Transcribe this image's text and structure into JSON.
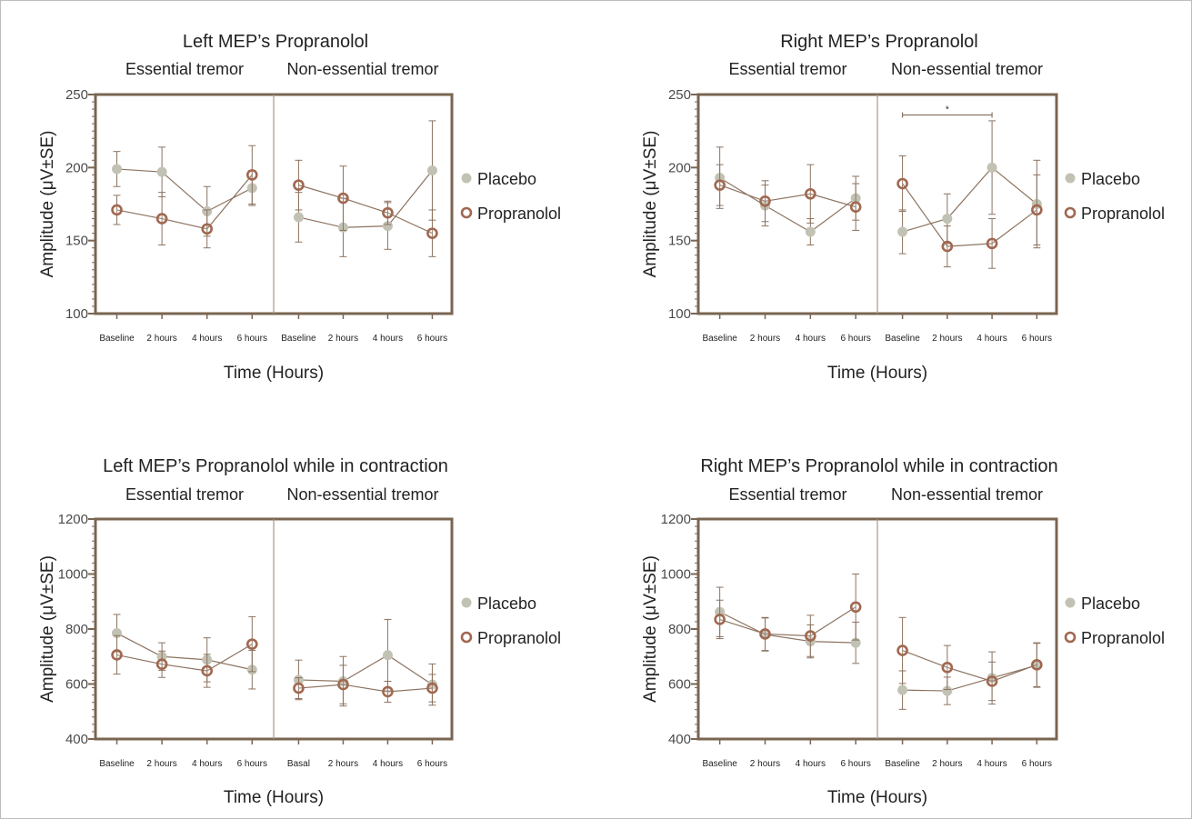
{
  "colors": {
    "axis": "#7a6552",
    "placebo": "#c2c2b4",
    "propranolol": "#a06850",
    "line": "#8c7360",
    "divider": "#a89888"
  },
  "chart_data": [
    {
      "type": "line",
      "title": "Left MEP’s Propranolol",
      "group_labels": [
        "Essential tremor",
        "Non-essential tremor"
      ],
      "xlabel": "Time (Hours)",
      "ylabel": "Amplitude (μV±SE)",
      "ylim": [
        100,
        250
      ],
      "yticks": [
        100,
        150,
        200,
        250
      ],
      "categories": [
        "Baseline",
        "2 hours",
        "4 hours",
        "6 hours",
        "Baseline",
        "2 hours",
        "4 hours",
        "6 hours"
      ],
      "legend_position": "right",
      "series": [
        {
          "name": "Placebo",
          "marker": "filled-circle",
          "values": [
            199,
            197,
            170,
            186,
            166,
            159,
            160,
            198
          ],
          "errors": [
            12,
            17,
            17,
            12,
            17,
            20,
            16,
            34
          ]
        },
        {
          "name": "Propranolol",
          "marker": "open-circle",
          "values": [
            171,
            165,
            158,
            195,
            188,
            179,
            169,
            155
          ],
          "errors": [
            10,
            18,
            13,
            20,
            17,
            22,
            8,
            16
          ]
        }
      ],
      "annotations": []
    },
    {
      "type": "line",
      "title": "Right  MEP’s Propranolol",
      "group_labels": [
        "Essential tremor",
        "Non-essential tremor"
      ],
      "xlabel": "Time (Hours)",
      "ylabel": "Amplitude (μV±SE)",
      "ylim": [
        100,
        250
      ],
      "yticks": [
        100,
        150,
        200,
        250
      ],
      "categories": [
        "Baseline",
        "2 hours",
        "4 hours",
        "6 hours",
        "Baseline",
        "2 hours",
        "4 hours",
        "6 hours"
      ],
      "legend_position": "right",
      "series": [
        {
          "name": "Placebo",
          "marker": "filled-circle",
          "values": [
            193,
            174,
            156,
            179,
            156,
            165,
            200,
            175
          ],
          "errors": [
            21,
            14,
            9,
            15,
            15,
            17,
            32,
            30
          ]
        },
        {
          "name": "Propranolol",
          "marker": "open-circle",
          "values": [
            188,
            177,
            182,
            173,
            189,
            146,
            148,
            171
          ],
          "errors": [
            14,
            14,
            20,
            16,
            19,
            14,
            17,
            24
          ]
        }
      ],
      "annotations": [
        {
          "text": "*",
          "from": 4,
          "to": 6,
          "y": 236
        }
      ]
    },
    {
      "type": "line",
      "title": "Left MEP’s Propranolol while in contraction",
      "group_labels": [
        "Essential tremor",
        "Non-essential tremor"
      ],
      "xlabel": "Time (Hours)",
      "ylabel": "Amplitude (μV±SE)",
      "ylim": [
        400,
        1200
      ],
      "yticks": [
        400,
        600,
        800,
        1000,
        1200
      ],
      "categories": [
        "Baseline",
        "2 hours",
        "4 hours",
        "6 hours",
        "Basal",
        "2 hours",
        "4 hours",
        "6 hours"
      ],
      "legend_position": "right",
      "series": [
        {
          "name": "Placebo",
          "marker": "filled-circle",
          "values": [
            785,
            700,
            688,
            652,
            615,
            610,
            705,
            598
          ],
          "errors": [
            68,
            50,
            80,
            70,
            72,
            90,
            130,
            75
          ]
        },
        {
          "name": "Propranolol",
          "marker": "open-circle",
          "values": [
            706,
            672,
            648,
            745,
            585,
            598,
            572,
            585
          ],
          "errors": [
            70,
            48,
            60,
            100,
            38,
            70,
            38,
            50
          ]
        }
      ],
      "annotations": []
    },
    {
      "type": "line",
      "title": "Right MEP’s Propranolol while in contraction",
      "group_labels": [
        "Essential tremor",
        "Non-essential tremor"
      ],
      "xlabel": "Time (Hours)",
      "ylabel": "Amplitude (μV±SE)",
      "ylim": [
        400,
        1200
      ],
      "yticks": [
        400,
        600,
        800,
        1000,
        1200
      ],
      "categories": [
        "Baseline",
        "2 hours",
        "4 hours",
        "6 hours",
        "Baseline",
        "2 hours",
        "4 hours",
        "6 hours"
      ],
      "legend_position": "right",
      "series": [
        {
          "name": "Placebo",
          "marker": "filled-circle",
          "values": [
            862,
            780,
            755,
            750,
            578,
            575,
            622,
            668
          ],
          "errors": [
            90,
            60,
            60,
            75,
            70,
            50,
            95,
            80
          ]
        },
        {
          "name": "Propranolol",
          "marker": "open-circle",
          "values": [
            835,
            782,
            775,
            880,
            722,
            660,
            610,
            670
          ],
          "errors": [
            70,
            60,
            75,
            120,
            120,
            80,
            70,
            80
          ]
        }
      ],
      "annotations": []
    }
  ]
}
